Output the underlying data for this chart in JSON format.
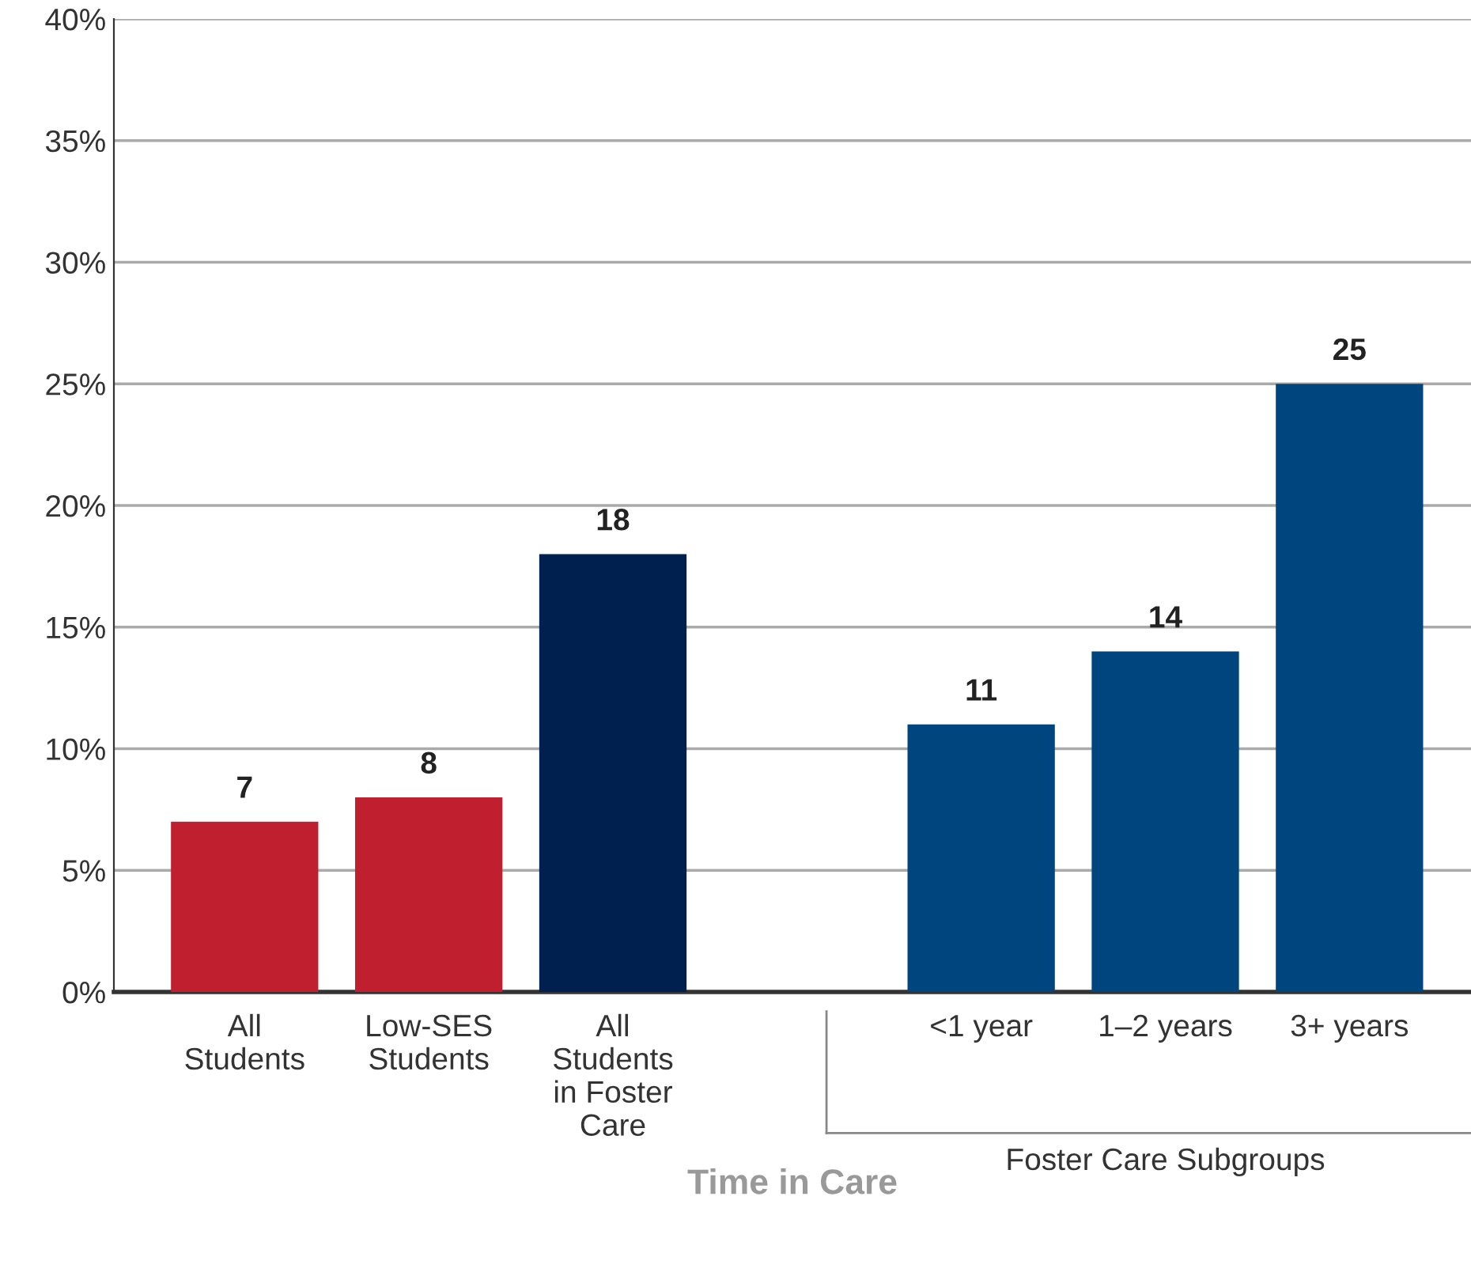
{
  "chart_data": {
    "type": "bar",
    "xlabel": "Time in Care",
    "categories": [
      "All\nStudents",
      "Low-SES\nStudents",
      "All\nStudents\nin Foster\nCare",
      null,
      "<1 year",
      "1–2 years",
      "3+ years"
    ],
    "values": [
      7,
      8,
      18,
      null,
      11,
      14,
      25
    ],
    "colors": [
      "#c01f2f",
      "#c01f2f",
      "#00214f",
      null,
      "#00457e",
      "#00457e",
      "#00457e"
    ],
    "data_labels": true,
    "ylim": [
      0,
      40
    ],
    "yticks": [
      {
        "value": 0,
        "label": "0%"
      },
      {
        "value": 5,
        "label": "5%"
      },
      {
        "value": 10,
        "label": "10%"
      },
      {
        "value": 15,
        "label": "15%"
      },
      {
        "value": 20,
        "label": "20%"
      },
      {
        "value": 25,
        "label": "25%"
      },
      {
        "value": 30,
        "label": "30%"
      },
      {
        "value": 35,
        "label": "35%"
      },
      {
        "value": 40,
        "label": "40%"
      }
    ],
    "grid": "y",
    "annotations": [
      "Foster Care Subgroups"
    ]
  }
}
